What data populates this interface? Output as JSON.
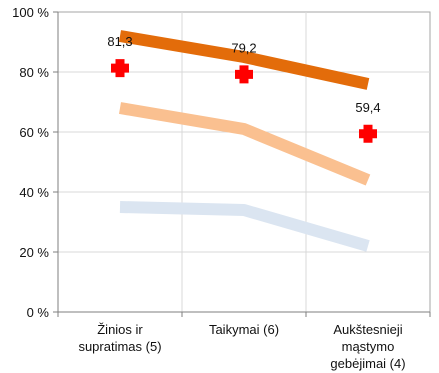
{
  "chart_data": {
    "type": "line",
    "categories": [
      [
        "Žinios ir",
        "supratimas (5)"
      ],
      [
        "Taikymai (6)"
      ],
      [
        "Aukštesnieji",
        "mąstymo",
        "gebėjimai (4)"
      ]
    ],
    "ylim": [
      0,
      100
    ],
    "y_ticks": [
      0,
      20,
      40,
      60,
      80,
      100
    ],
    "y_tick_labels": [
      "0 %",
      "20 %",
      "40 %",
      "60 %",
      "80 %",
      "100 %"
    ],
    "grid": true,
    "series": [
      {
        "values": [
          92,
          85,
          76
        ],
        "color": "#e36c0a",
        "style": "thick-line"
      },
      {
        "values": [
          68,
          61,
          44
        ],
        "color": "#fac090",
        "style": "thick-line"
      },
      {
        "values": [
          35,
          34,
          22
        ],
        "color": "#dbe5f1",
        "style": "thick-line"
      },
      {
        "values": [
          81.3,
          79.2,
          59.4
        ],
        "color": "#ff0000",
        "style": "cross-marker",
        "labels": [
          "81,3",
          "79,2",
          "59,4"
        ]
      }
    ]
  }
}
